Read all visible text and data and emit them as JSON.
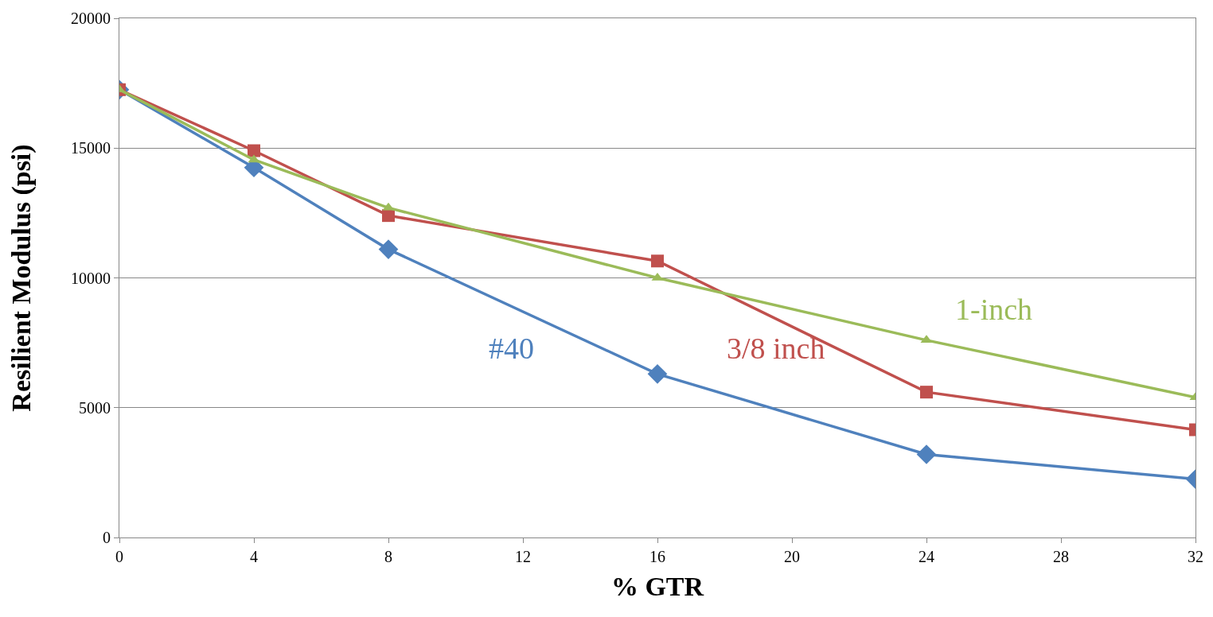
{
  "chart_data": {
    "type": "line",
    "xlabel": "% GTR",
    "ylabel": "Resilient Modulus (psi)",
    "x": [
      0,
      4,
      8,
      16,
      24,
      32
    ],
    "xlim": [
      0,
      32
    ],
    "xticks": [
      0,
      4,
      8,
      12,
      16,
      20,
      24,
      28,
      32
    ],
    "ylim": [
      0,
      20000
    ],
    "yticks": [
      0,
      5000,
      10000,
      15000,
      20000
    ],
    "grid": "y",
    "legend": false,
    "series": [
      {
        "name": "#40",
        "color": "#4f81bd",
        "marker": "diamond",
        "values": [
          17250,
          14250,
          11100,
          6300,
          3200,
          2250
        ]
      },
      {
        "name": "3/8 inch",
        "color": "#c0504d",
        "marker": "square",
        "values": [
          17250,
          14900,
          12400,
          10650,
          5600,
          4150
        ]
      },
      {
        "name": "1-inch",
        "color": "#9bbb59",
        "marker": "triangle",
        "values": [
          17250,
          14550,
          12700,
          10000,
          7600,
          5400
        ]
      }
    ]
  }
}
